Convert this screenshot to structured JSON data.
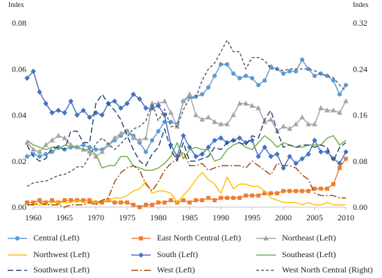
{
  "chart_data": {
    "type": "line",
    "y_left_label": "Index",
    "y_right_label": "Index",
    "x_ticks": [
      "1960",
      "1965",
      "1970",
      "1975",
      "1980",
      "1985",
      "1990",
      "1995",
      "2000",
      "2005",
      "2010"
    ],
    "y_left_ticks": [
      "0.00",
      "0.02",
      "0.04",
      "0.06",
      "0.08"
    ],
    "y_right_ticks": [
      "0.00",
      "0.08",
      "0.16",
      "0.24",
      "0.32"
    ],
    "ylim_left": [
      0,
      0.08
    ],
    "ylim_right": [
      0,
      0.32
    ],
    "xlim": [
      1960,
      2010
    ],
    "grid": false,
    "legend_position": "bottom",
    "x": [
      1959,
      1960,
      1961,
      1962,
      1963,
      1964,
      1965,
      1966,
      1967,
      1968,
      1969,
      1970,
      1971,
      1972,
      1973,
      1974,
      1975,
      1976,
      1977,
      1978,
      1979,
      1980,
      1981,
      1982,
      1983,
      1984,
      1985,
      1986,
      1987,
      1988,
      1989,
      1990,
      1991,
      1992,
      1993,
      1994,
      1995,
      1996,
      1997,
      1998,
      1999,
      2000,
      2001,
      2002,
      2003,
      2004,
      2005,
      2006,
      2007,
      2008,
      2009,
      2010
    ],
    "series": [
      {
        "name": "Central (Left)",
        "color": "#5B9BD5",
        "dash": "",
        "marker": "circle",
        "axis": "left",
        "values": [
          0.022,
          0.023,
          0.022,
          0.023,
          0.024,
          0.026,
          0.025,
          0.026,
          0.026,
          0.027,
          0.026,
          0.025,
          0.025,
          0.027,
          0.029,
          0.031,
          0.033,
          0.031,
          0.028,
          0.024,
          0.029,
          0.033,
          0.037,
          0.037,
          0.036,
          0.046,
          0.048,
          0.048,
          0.049,
          0.052,
          0.057,
          0.062,
          0.062,
          0.058,
          0.056,
          0.057,
          0.056,
          0.053,
          0.055,
          0.061,
          0.06,
          0.058,
          0.059,
          0.059,
          0.064,
          0.06,
          0.057,
          0.058,
          0.057,
          0.055,
          0.049,
          0.053
        ]
      },
      {
        "name": "East North Central (Left)",
        "color": "#ED7D31",
        "dash": "",
        "marker": "square",
        "axis": "left",
        "values": [
          0.002,
          0.002,
          0.003,
          0.002,
          0.003,
          0.002,
          0.003,
          0.003,
          0.003,
          0.003,
          0.003,
          0.002,
          0.002,
          0.003,
          0.002,
          0.002,
          0.002,
          0.001,
          0.0,
          0.001,
          0.001,
          0.002,
          0.002,
          0.003,
          0.002,
          0.003,
          0.002,
          0.003,
          0.003,
          0.004,
          0.003,
          0.004,
          0.004,
          0.004,
          0.004,
          0.005,
          0.005,
          0.005,
          0.006,
          0.006,
          0.006,
          0.007,
          0.007,
          0.007,
          0.007,
          0.007,
          0.008,
          0.008,
          0.008,
          0.01,
          0.017,
          0.021
        ]
      },
      {
        "name": "Northeast (Left)",
        "color": "#A5A5A5",
        "dash": "",
        "marker": "triangle",
        "axis": "left",
        "values": [
          0.028,
          0.025,
          0.024,
          0.027,
          0.029,
          0.031,
          0.03,
          0.027,
          0.026,
          0.025,
          0.024,
          0.022,
          0.024,
          0.027,
          0.03,
          0.032,
          0.033,
          0.03,
          0.029,
          0.03,
          0.045,
          0.045,
          0.046,
          0.041,
          0.035,
          0.046,
          0.049,
          0.04,
          0.038,
          0.039,
          0.037,
          0.036,
          0.036,
          0.04,
          0.045,
          0.045,
          0.044,
          0.043,
          0.037,
          0.038,
          0.033,
          0.035,
          0.034,
          0.036,
          0.039,
          0.036,
          0.036,
          0.043,
          0.042,
          0.042,
          0.041,
          0.046
        ]
      },
      {
        "name": "Northwest (Left)",
        "color": "#FFC000",
        "dash": "",
        "marker": "",
        "axis": "left",
        "values": [
          0.001,
          0.001,
          0.001,
          0.001,
          0.002,
          0.002,
          0.002,
          0.002,
          0.003,
          0.002,
          0.002,
          0.002,
          0.003,
          0.003,
          0.004,
          0.004,
          0.005,
          0.007,
          0.008,
          0.011,
          0.006,
          0.007,
          0.007,
          0.006,
          0.002,
          0.005,
          0.008,
          0.012,
          0.015,
          0.012,
          0.01,
          0.006,
          0.013,
          0.008,
          0.01,
          0.01,
          0.009,
          0.009,
          0.007,
          0.004,
          0.003,
          0.002,
          0.002,
          0.002,
          0.001,
          0.002,
          0.001,
          0.001,
          0.002,
          0.001,
          0.001,
          0.001
        ]
      },
      {
        "name": "South (Left)",
        "color": "#4472C4",
        "dash": "",
        "marker": "diamond",
        "axis": "left",
        "values": [
          0.056,
          0.059,
          0.05,
          0.045,
          0.041,
          0.042,
          0.041,
          0.046,
          0.04,
          0.042,
          0.039,
          0.041,
          0.04,
          0.045,
          0.046,
          0.043,
          0.045,
          0.049,
          0.047,
          0.043,
          0.043,
          0.044,
          0.04,
          0.027,
          0.022,
          0.031,
          0.026,
          0.022,
          0.023,
          0.026,
          0.029,
          0.03,
          0.028,
          0.029,
          0.03,
          0.028,
          0.029,
          0.022,
          0.026,
          0.022,
          0.023,
          0.017,
          0.022,
          0.019,
          0.021,
          0.023,
          0.029,
          0.024,
          0.024,
          0.021,
          0.019,
          0.024
        ]
      },
      {
        "name": "Southeast (Left)",
        "color": "#70AD47",
        "dash": "",
        "marker": "",
        "axis": "left",
        "values": [
          0.029,
          0.027,
          0.026,
          0.025,
          0.026,
          0.025,
          0.027,
          0.026,
          0.026,
          0.025,
          0.025,
          0.023,
          0.017,
          0.018,
          0.018,
          0.022,
          0.022,
          0.018,
          0.017,
          0.016,
          0.016,
          0.017,
          0.019,
          0.022,
          0.028,
          0.021,
          0.025,
          0.026,
          0.025,
          0.025,
          0.02,
          0.021,
          0.025,
          0.027,
          0.028,
          0.026,
          0.025,
          0.028,
          0.031,
          0.029,
          0.026,
          0.028,
          0.027,
          0.026,
          0.026,
          0.027,
          0.027,
          0.027,
          0.03,
          0.031,
          0.027,
          0.029
        ]
      },
      {
        "name": "Southwest (Left)",
        "color": "#264478",
        "dash": "8,4",
        "marker": "",
        "axis": "left",
        "values": [
          0.027,
          0.022,
          0.02,
          0.021,
          0.026,
          0.026,
          0.025,
          0.033,
          0.033,
          0.028,
          0.028,
          0.045,
          0.049,
          0.045,
          0.042,
          0.038,
          0.031,
          0.025,
          0.02,
          0.018,
          0.023,
          0.026,
          0.034,
          0.025,
          0.02,
          0.028,
          0.02,
          0.02,
          0.021,
          0.022,
          0.026,
          0.025,
          0.028,
          0.029,
          0.028,
          0.027,
          0.031,
          0.03,
          0.038,
          0.042,
          0.033,
          0.026,
          0.027,
          0.026,
          0.027,
          0.027,
          0.026,
          0.027,
          0.026,
          0.02,
          0.026,
          0.028
        ]
      },
      {
        "name": "West (Left)",
        "color": "#9E480E",
        "dash": "10,3,2,3",
        "marker": "",
        "axis": "left",
        "values": [
          0.001,
          0.001,
          0.002,
          0.001,
          0.001,
          0.001,
          0.0,
          0.001,
          0.001,
          0.001,
          0.002,
          0.001,
          0.003,
          0.004,
          0.011,
          0.015,
          0.017,
          0.018,
          0.016,
          0.01,
          0.007,
          0.011,
          0.016,
          0.019,
          0.021,
          0.024,
          0.018,
          0.018,
          0.019,
          0.016,
          0.017,
          0.018,
          0.018,
          0.018,
          0.018,
          0.017,
          0.02,
          0.018,
          0.016,
          0.014,
          0.019,
          0.018,
          0.018,
          0.017,
          0.014,
          0.012,
          0.006,
          0.005,
          0.005,
          0.005,
          0.004,
          0.004
        ]
      },
      {
        "name": "West North Central (Right)",
        "color": "#595959",
        "dash": "4,3",
        "marker": "",
        "axis": "right",
        "values": [
          0.036,
          0.042,
          0.044,
          0.045,
          0.05,
          0.055,
          0.057,
          0.062,
          0.07,
          0.07,
          0.089,
          0.11,
          0.12,
          0.11,
          0.1,
          0.11,
          0.122,
          0.136,
          0.14,
          0.15,
          0.18,
          0.15,
          0.17,
          0.14,
          0.14,
          0.169,
          0.189,
          0.19,
          0.22,
          0.24,
          0.25,
          0.27,
          0.29,
          0.27,
          0.27,
          0.24,
          0.26,
          0.26,
          0.255,
          0.24,
          0.24,
          0.237,
          0.24,
          0.24,
          0.24,
          0.24,
          0.237,
          0.231,
          0.228,
          0.225,
          0.212,
          0.202
        ]
      }
    ]
  }
}
